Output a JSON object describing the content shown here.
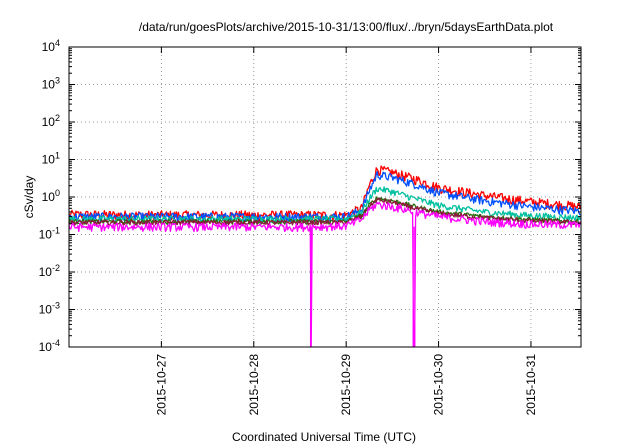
{
  "chart_data": {
    "type": "line",
    "title": "/data/run/goesPlots/archive/2015-10-31/13:00/flux/../bryn/5daysEarthData.plot",
    "xlabel": "Coordinated Universal Time (UTC)",
    "ylabel": "cSv/day",
    "x_range": [
      "2015-10-26T00:00",
      "2015-10-31T13:00"
    ],
    "ylim": [
      0.0001,
      10000
    ],
    "yscale": "log",
    "grid": true,
    "legend": "none",
    "x_ticks": [
      "2015-10-27",
      "2015-10-28",
      "2015-10-29",
      "2015-10-30",
      "2015-10-31"
    ],
    "y_ticks": [
      {
        "value": 0.0001,
        "base": "10",
        "exp": "-4"
      },
      {
        "value": 0.001,
        "base": "10",
        "exp": "-3"
      },
      {
        "value": 0.01,
        "base": "10",
        "exp": "-2"
      },
      {
        "value": 0.1,
        "base": "10",
        "exp": "-1"
      },
      {
        "value": 1,
        "base": "10",
        "exp": "0"
      },
      {
        "value": 10,
        "base": "10",
        "exp": "1"
      },
      {
        "value": 100,
        "base": "10",
        "exp": "2"
      },
      {
        "value": 1000,
        "base": "10",
        "exp": "3"
      },
      {
        "value": 10000,
        "base": "10",
        "exp": "4"
      }
    ],
    "series": [
      {
        "color": "#ff0000",
        "noise": 0.3,
        "points": [
          [
            "2015-10-26T00:00",
            0.34
          ],
          [
            "2015-10-27T00:00",
            0.33
          ],
          [
            "2015-10-28T00:00",
            0.33
          ],
          [
            "2015-10-28T12:00",
            0.33
          ],
          [
            "2015-10-29T00:00",
            0.33
          ],
          [
            "2015-10-29T04:00",
            0.5
          ],
          [
            "2015-10-29T06:00",
            2.0
          ],
          [
            "2015-10-29T08:00",
            5.5
          ],
          [
            "2015-10-29T12:00",
            4.5
          ],
          [
            "2015-10-29T18:00",
            3.0
          ],
          [
            "2015-10-30T00:00",
            1.8
          ],
          [
            "2015-10-30T12:00",
            1.1
          ],
          [
            "2015-10-31T00:00",
            0.75
          ],
          [
            "2015-10-31T13:00",
            0.55
          ]
        ]
      },
      {
        "color": "#0050ff",
        "noise": 0.26,
        "points": [
          [
            "2015-10-26T00:00",
            0.3
          ],
          [
            "2015-10-27T00:00",
            0.3
          ],
          [
            "2015-10-28T00:00",
            0.3
          ],
          [
            "2015-10-29T00:00",
            0.3
          ],
          [
            "2015-10-29T04:00",
            0.45
          ],
          [
            "2015-10-29T06:00",
            1.5
          ],
          [
            "2015-10-29T08:00",
            4.0
          ],
          [
            "2015-10-29T12:00",
            3.3
          ],
          [
            "2015-10-29T18:00",
            2.2
          ],
          [
            "2015-10-30T00:00",
            1.3
          ],
          [
            "2015-10-30T12:00",
            0.8
          ],
          [
            "2015-10-31T00:00",
            0.55
          ],
          [
            "2015-10-31T13:00",
            0.42
          ]
        ]
      },
      {
        "color": "#00c0a0",
        "noise": 0.2,
        "points": [
          [
            "2015-10-26T00:00",
            0.26
          ],
          [
            "2015-10-28T00:00",
            0.26
          ],
          [
            "2015-10-29T00:00",
            0.26
          ],
          [
            "2015-10-29T04:00",
            0.4
          ],
          [
            "2015-10-29T06:00",
            0.9
          ],
          [
            "2015-10-29T08:00",
            1.7
          ],
          [
            "2015-10-29T12:00",
            1.4
          ],
          [
            "2015-10-29T18:00",
            0.9
          ],
          [
            "2015-10-30T00:00",
            0.6
          ],
          [
            "2015-10-30T12:00",
            0.4
          ],
          [
            "2015-10-31T00:00",
            0.32
          ],
          [
            "2015-10-31T13:00",
            0.28
          ]
        ]
      },
      {
        "color": "#2a6e10",
        "noise": 0.15,
        "points": [
          [
            "2015-10-26T00:00",
            0.22
          ],
          [
            "2015-10-28T00:00",
            0.22
          ],
          [
            "2015-10-29T00:00",
            0.22
          ],
          [
            "2015-10-29T04:00",
            0.32
          ],
          [
            "2015-10-29T06:00",
            0.6
          ],
          [
            "2015-10-29T08:00",
            0.95
          ],
          [
            "2015-10-29T12:00",
            0.8
          ],
          [
            "2015-10-29T18:00",
            0.55
          ],
          [
            "2015-10-30T00:00",
            0.4
          ],
          [
            "2015-10-30T12:00",
            0.3
          ],
          [
            "2015-10-31T00:00",
            0.25
          ],
          [
            "2015-10-31T13:00",
            0.22
          ]
        ]
      },
      {
        "color": "#8b1a3a",
        "noise": 0.15,
        "points": [
          [
            "2015-10-26T00:00",
            0.21
          ],
          [
            "2015-10-28T00:00",
            0.21
          ],
          [
            "2015-10-29T00:00",
            0.21
          ],
          [
            "2015-10-29T04:00",
            0.3
          ],
          [
            "2015-10-29T06:00",
            0.55
          ],
          [
            "2015-10-29T08:00",
            0.85
          ],
          [
            "2015-10-29T12:00",
            0.72
          ],
          [
            "2015-10-29T18:00",
            0.5
          ],
          [
            "2015-10-30T00:00",
            0.36
          ],
          [
            "2015-10-30T12:00",
            0.28
          ],
          [
            "2015-10-31T00:00",
            0.23
          ],
          [
            "2015-10-31T13:00",
            0.21
          ]
        ]
      },
      {
        "color": "#ff00ff",
        "noise": 0.25,
        "points": [
          [
            "2015-10-26T00:00",
            0.16
          ],
          [
            "2015-10-27T00:00",
            0.16
          ],
          [
            "2015-10-28T00:00",
            0.16
          ],
          [
            "2015-10-28T14:40",
            0.16
          ],
          [
            "2015-10-28T14:45",
            0.0001
          ],
          [
            "2015-10-28T14:55",
            0.0001
          ],
          [
            "2015-10-28T15:00",
            0.16
          ],
          [
            "2015-10-29T00:00",
            0.17
          ],
          [
            "2015-10-29T04:00",
            0.25
          ],
          [
            "2015-10-29T06:00",
            0.45
          ],
          [
            "2015-10-29T08:00",
            0.65
          ],
          [
            "2015-10-29T12:00",
            0.55
          ],
          [
            "2015-10-29T16:00",
            0.45
          ],
          [
            "2015-10-29T17:20",
            0.42
          ],
          [
            "2015-10-29T17:25",
            0.0001
          ],
          [
            "2015-10-29T17:50",
            0.0001
          ],
          [
            "2015-10-29T17:55",
            0.4
          ],
          [
            "2015-10-30T00:00",
            0.3
          ],
          [
            "2015-10-30T12:00",
            0.22
          ],
          [
            "2015-10-31T00:00",
            0.19
          ],
          [
            "2015-10-31T13:00",
            0.18
          ]
        ]
      }
    ]
  }
}
